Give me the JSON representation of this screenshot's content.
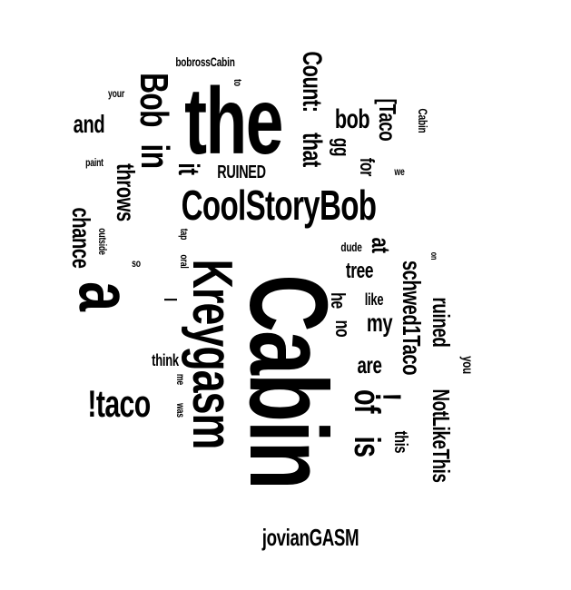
{
  "word_cloud": {
    "background_color": "#ffffff",
    "text_color": "#000000",
    "words": [
      {
        "text": "Cabin",
        "orientation": "vertical"
      },
      {
        "text": "the",
        "orientation": "horizontal"
      },
      {
        "text": "Kreygasm",
        "orientation": "vertical"
      },
      {
        "text": "CoolStoryBob",
        "orientation": "horizontal"
      },
      {
        "text": "a",
        "orientation": "vertical"
      },
      {
        "text": "Bob",
        "orientation": "vertical"
      },
      {
        "text": "in",
        "orientation": "vertical"
      },
      {
        "text": "!taco",
        "orientation": "horizontal"
      },
      {
        "text": "Count:",
        "orientation": "vertical"
      },
      {
        "text": "that",
        "orientation": "vertical"
      },
      {
        "text": "of",
        "orientation": "vertical"
      },
      {
        "text": "is",
        "orientation": "vertical"
      },
      {
        "text": "!",
        "orientation": "vertical"
      },
      {
        "text": "it",
        "orientation": "vertical"
      },
      {
        "text": "throws",
        "orientation": "vertical"
      },
      {
        "text": "chance",
        "orientation": "vertical"
      },
      {
        "text": "bob",
        "orientation": "horizontal"
      },
      {
        "text": "[Taco",
        "orientation": "vertical"
      },
      {
        "text": "schwed1Taco",
        "orientation": "vertical"
      },
      {
        "text": "ruined",
        "orientation": "vertical"
      },
      {
        "text": "NotLikeThis",
        "orientation": "vertical"
      },
      {
        "text": "jovianGASM",
        "orientation": "horizontal"
      },
      {
        "text": "and",
        "orientation": "horizontal"
      },
      {
        "text": "RUINED",
        "orientation": "horizontal"
      },
      {
        "text": "gg",
        "orientation": "vertical"
      },
      {
        "text": "for",
        "orientation": "vertical"
      },
      {
        "text": "at",
        "orientation": "vertical"
      },
      {
        "text": "tree",
        "orientation": "horizontal"
      },
      {
        "text": "my",
        "orientation": "horizontal"
      },
      {
        "text": "he",
        "orientation": "vertical"
      },
      {
        "text": "no",
        "orientation": "vertical"
      },
      {
        "text": "are",
        "orientation": "horizontal"
      },
      {
        "text": "like",
        "orientation": "horizontal"
      },
      {
        "text": "this",
        "orientation": "vertical"
      },
      {
        "text": "think",
        "orientation": "horizontal"
      },
      {
        "text": "I",
        "orientation": "vertical"
      },
      {
        "text": "bobrossCabin",
        "orientation": "horizontal"
      },
      {
        "text": "to",
        "orientation": "vertical"
      },
      {
        "text": "your",
        "orientation": "horizontal"
      },
      {
        "text": "paint",
        "orientation": "horizontal"
      },
      {
        "text": "outside",
        "orientation": "vertical"
      },
      {
        "text": "so",
        "orientation": "horizontal"
      },
      {
        "text": "tap",
        "orientation": "vertical"
      },
      {
        "text": "oral",
        "orientation": "vertical"
      },
      {
        "text": "dude",
        "orientation": "horizontal"
      },
      {
        "text": "on",
        "orientation": "vertical"
      },
      {
        "text": "Cabin",
        "orientation": "vertical"
      },
      {
        "text": "we",
        "orientation": "horizontal"
      },
      {
        "text": "you",
        "orientation": "vertical"
      },
      {
        "text": "me",
        "orientation": "vertical"
      },
      {
        "text": "was",
        "orientation": "vertical"
      }
    ]
  }
}
